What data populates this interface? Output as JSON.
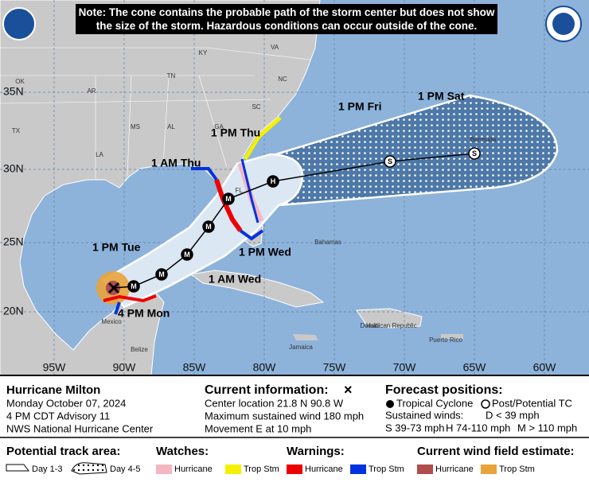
{
  "note": "Note: The cone contains the probable path of the storm center but does not show the size of the storm. Hazardous conditions can occur outside of the cone.",
  "map": {
    "latitude_labels": [
      "35N",
      "30N",
      "25N",
      "20N"
    ],
    "longitude_labels": [
      "95W",
      "90W",
      "85W",
      "80W",
      "75W",
      "70W",
      "65W",
      "60W"
    ],
    "place_labels": [
      "KY",
      "VA",
      "TN",
      "NC",
      "SC",
      "GA",
      "AL",
      "MS",
      "LA",
      "AR",
      "OK",
      "TX",
      "FL",
      "Mexico",
      "Belize",
      "Bahamas",
      "Jamaica",
      "Haiti",
      "Dominican Republic",
      "Puerto Rico",
      "Bermuda"
    ]
  },
  "track": {
    "points": [
      {
        "symbol": "M"
      },
      {
        "symbol": "M"
      },
      {
        "symbol": "M"
      },
      {
        "symbol": "M"
      },
      {
        "symbol": "M"
      },
      {
        "symbol": "H"
      },
      {
        "symbol": "S"
      },
      {
        "symbol": "S"
      }
    ],
    "time_labels": [
      "4 PM Mon",
      "1 PM Tue",
      "1 AM Wed",
      "1 PM Wed",
      "1 AM Thu",
      "1 PM Thu",
      "1 PM Fri",
      "1 PM Sat"
    ]
  },
  "info": {
    "storm": {
      "name": "Hurricane Milton",
      "date": "Monday October 07, 2024",
      "advisory": "4 PM CDT Advisory 11",
      "center": "NWS National Hurricane Center"
    },
    "current": {
      "title": "Current information:",
      "symbol": "×",
      "lines": [
        "Center location 21.8 N 90.8 W",
        "Maximum sustained wind 180 mph",
        "Movement E at 10 mph"
      ]
    },
    "forecast": {
      "title": "Forecast positions:",
      "tropical": "Tropical Cyclone",
      "post": "Post/Potential TC",
      "winds": "Sustained winds:",
      "d": "D < 39 mph",
      "s": "S 39-73 mph",
      "h": "H 74-110 mph",
      "m": "M > 110 mph"
    }
  },
  "legend": {
    "track_title": "Potential track area:",
    "day13": "Day 1-3",
    "day45": "Day 4-5",
    "watches": {
      "title": "Watches:",
      "hurricane": "Hurricane",
      "trop": "Trop Stm"
    },
    "warnings": {
      "title": "Warnings:",
      "hurricane": "Hurricane",
      "trop": "Trop Stm"
    },
    "wind": {
      "title": "Current wind field estimate:",
      "hurricane": "Hurricane",
      "trop": "Trop Stm"
    }
  }
}
